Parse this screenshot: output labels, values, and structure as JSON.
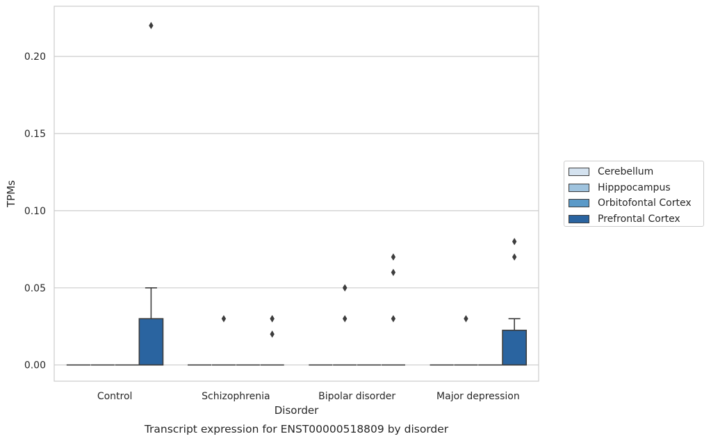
{
  "chart_data": {
    "type": "box",
    "title": "Transcript expression for ENST00000518809 by disorder",
    "xlabel": "Disorder",
    "ylabel": "TPMs",
    "categories": [
      "Control",
      "Schizophrenia",
      "Bipolar disorder",
      "Major depression"
    ],
    "ylim": [
      -0.0105,
      0.2325
    ],
    "yticks": [
      0.0,
      0.05,
      0.1,
      0.15,
      0.2
    ],
    "ytick_labels": [
      "0.00",
      "0.05",
      "0.10",
      "0.15",
      "0.20"
    ],
    "grid": true,
    "legend_position": "right",
    "series": [
      {
        "name": "Cerebellum",
        "color": "#d4e2ef",
        "boxes": [
          {
            "q1": 0,
            "median": 0,
            "q3": 0,
            "whisker_low": 0,
            "whisker_high": 0,
            "outliers": []
          },
          {
            "q1": 0,
            "median": 0,
            "q3": 0,
            "whisker_low": 0,
            "whisker_high": 0,
            "outliers": []
          },
          {
            "q1": 0,
            "median": 0,
            "q3": 0,
            "whisker_low": 0,
            "whisker_high": 0,
            "outliers": []
          },
          {
            "q1": 0,
            "median": 0,
            "q3": 0,
            "whisker_low": 0,
            "whisker_high": 0,
            "outliers": []
          }
        ]
      },
      {
        "name": "Hipppocampus",
        "color": "#9fc3de",
        "boxes": [
          {
            "q1": 0,
            "median": 0,
            "q3": 0,
            "whisker_low": 0,
            "whisker_high": 0,
            "outliers": []
          },
          {
            "q1": 0,
            "median": 0,
            "q3": 0,
            "whisker_low": 0,
            "whisker_high": 0,
            "outliers": [
              0.03
            ]
          },
          {
            "q1": 0,
            "median": 0,
            "q3": 0,
            "whisker_low": 0,
            "whisker_high": 0,
            "outliers": [
              0.03,
              0.05,
              0.05
            ]
          },
          {
            "q1": 0,
            "median": 0,
            "q3": 0,
            "whisker_low": 0,
            "whisker_high": 0,
            "outliers": [
              0.03
            ]
          }
        ]
      },
      {
        "name": "Orbitofontal Cortex",
        "color": "#5b9ac8",
        "boxes": [
          {
            "q1": 0,
            "median": 0,
            "q3": 0,
            "whisker_low": 0,
            "whisker_high": 0,
            "outliers": []
          },
          {
            "q1": 0,
            "median": 0,
            "q3": 0,
            "whisker_low": 0,
            "whisker_high": 0,
            "outliers": []
          },
          {
            "q1": 0,
            "median": 0,
            "q3": 0,
            "whisker_low": 0,
            "whisker_high": 0,
            "outliers": []
          },
          {
            "q1": 0,
            "median": 0,
            "q3": 0,
            "whisker_low": 0,
            "whisker_high": 0,
            "outliers": []
          }
        ]
      },
      {
        "name": "Prefrontal Cortex",
        "color": "#2a64a0",
        "boxes": [
          {
            "q1": 0,
            "median": 0,
            "q3": 0.03,
            "whisker_low": 0,
            "whisker_high": 0.05,
            "outliers": [
              0.22
            ]
          },
          {
            "q1": 0,
            "median": 0,
            "q3": 0,
            "whisker_low": 0,
            "whisker_high": 0,
            "outliers": [
              0.02,
              0.03,
              0.03
            ]
          },
          {
            "q1": 0,
            "median": 0,
            "q3": 0,
            "whisker_low": 0,
            "whisker_high": 0,
            "outliers": [
              0.03,
              0.06,
              0.07
            ]
          },
          {
            "q1": 0,
            "median": 0,
            "q3": 0.0225,
            "whisker_low": 0,
            "whisker_high": 0.03,
            "outliers": [
              0.07,
              0.08
            ]
          }
        ]
      }
    ]
  }
}
